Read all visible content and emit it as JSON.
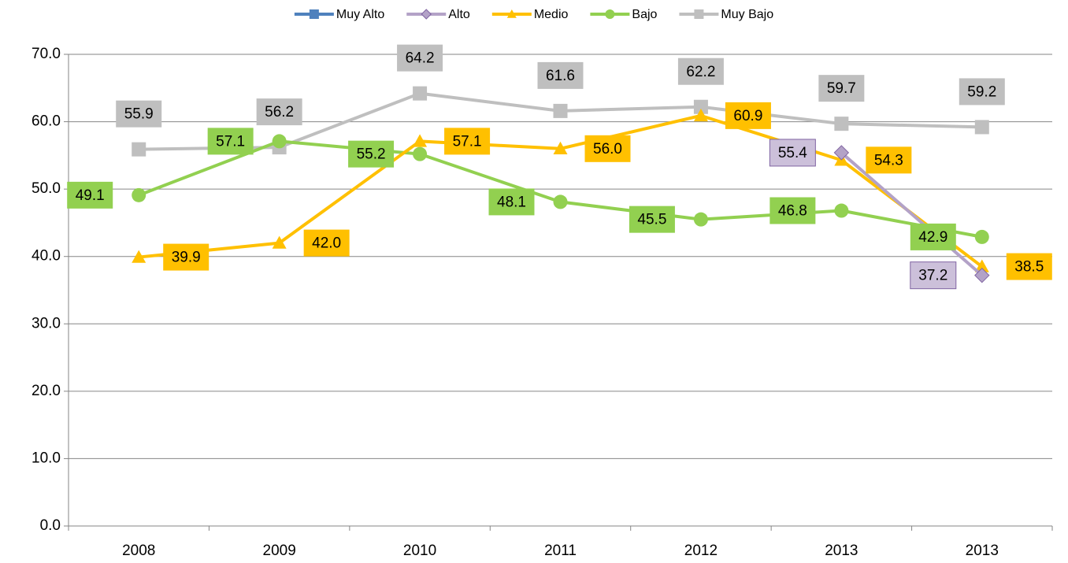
{
  "chart_data": {
    "type": "line",
    "categories": [
      "2008",
      "2009",
      "2010",
      "2011",
      "2012",
      "2013",
      "2013"
    ],
    "series": [
      {
        "name": "Muy Alto",
        "color": "#4f81bd",
        "marker": "square",
        "values": [
          null,
          null,
          null,
          null,
          null,
          null,
          null
        ]
      },
      {
        "name": "Alto",
        "color": "#b3a2c7",
        "marker": "diamond",
        "values": [
          null,
          null,
          null,
          null,
          null,
          55.4,
          37.2
        ],
        "value_labels": [
          null,
          null,
          null,
          null,
          null,
          "55.4",
          "37.2"
        ]
      },
      {
        "name": "Medio",
        "color": "#ffc000",
        "marker": "triangle",
        "values": [
          39.9,
          42.0,
          57.1,
          56.0,
          60.9,
          54.3,
          38.5
        ],
        "value_labels": [
          "39.9",
          "42.0",
          "57.1",
          "56.0",
          "60.9",
          "54.3",
          "38.5"
        ]
      },
      {
        "name": "Bajo",
        "color": "#92d050",
        "marker": "circle",
        "values": [
          49.1,
          57.1,
          55.2,
          48.1,
          45.5,
          46.8,
          42.9
        ],
        "value_labels": [
          "49.1",
          "57.1",
          "55.2",
          "48.1",
          "45.5",
          "46.8",
          "42.9"
        ]
      },
      {
        "name": "Muy Bajo",
        "color": "#bfbfbf",
        "marker": "square",
        "values": [
          55.9,
          56.2,
          64.2,
          61.6,
          62.2,
          59.7,
          59.2
        ],
        "value_labels": [
          "55.9",
          "56.2",
          "64.2",
          "61.6",
          "62.2",
          "59.7",
          "59.2"
        ]
      }
    ],
    "ylim": [
      0,
      70
    ],
    "yticks": [
      {
        "value": 0,
        "label": "0.0"
      },
      {
        "value": 10,
        "label": "10.0"
      },
      {
        "value": 20,
        "label": "20.0"
      },
      {
        "value": 30,
        "label": "30.0"
      },
      {
        "value": 40,
        "label": "40.0"
      },
      {
        "value": 50,
        "label": "50.0"
      },
      {
        "value": 60,
        "label": "60.0"
      },
      {
        "value": 70,
        "label": "70.0"
      }
    ],
    "grid": true,
    "legend": "top"
  }
}
